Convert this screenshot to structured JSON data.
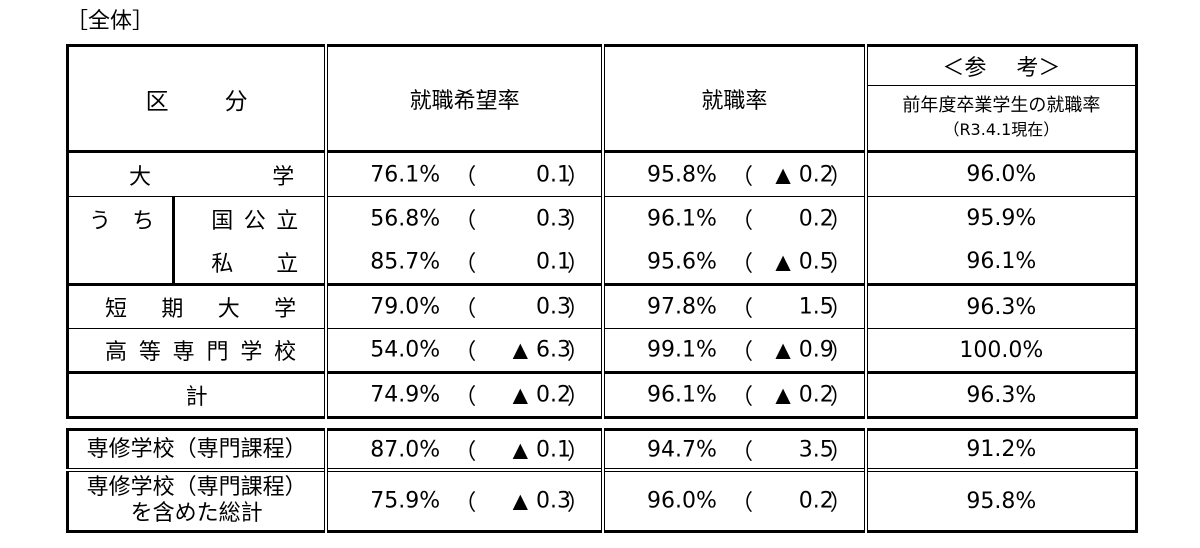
{
  "section_label": "［全体］",
  "header": {
    "category": [
      "区",
      "分"
    ],
    "job_desire_rate": "就職希望率",
    "employment_rate": "就職率",
    "reference_title": [
      "＜参",
      "考＞"
    ],
    "reference_line1": "前年度卒業学生の就職率",
    "reference_line2": "（R3.4.1現在）"
  },
  "rows": {
    "daigaku": {
      "label_chars": [
        "大",
        "学"
      ],
      "desire": "76.1%",
      "desire_tri": "",
      "desire_diff": "0.1",
      "emp": "95.8%",
      "emp_tri": "▲",
      "emp_diff": "0.2",
      "ref": "96.0%"
    },
    "uchi_label": [
      "う",
      "ち"
    ],
    "kokkouritsu": {
      "label_chars": [
        "国",
        "公",
        "立"
      ],
      "desire": "56.8%",
      "desire_tri": "",
      "desire_diff": "0.3",
      "emp": "96.1%",
      "emp_tri": "",
      "emp_diff": "0.2",
      "ref": "95.9%"
    },
    "shiritsu": {
      "label_chars": [
        "私",
        "立"
      ],
      "desire": "85.7%",
      "desire_tri": "",
      "desire_diff": "0.1",
      "emp": "95.6%",
      "emp_tri": "▲",
      "emp_diff": "0.5",
      "ref": "96.1%"
    },
    "tanki": {
      "label_chars": [
        "短",
        "期",
        "大",
        "学"
      ],
      "desire": "79.0%",
      "desire_tri": "",
      "desire_diff": "0.3",
      "emp": "97.8%",
      "emp_tri": "",
      "emp_diff": "1.5",
      "ref": "96.3%"
    },
    "kosen": {
      "label_chars": [
        "高",
        "等",
        "専",
        "門",
        "学",
        "校"
      ],
      "desire": "54.0%",
      "desire_tri": "▲",
      "desire_diff": "6.3",
      "emp": "99.1%",
      "emp_tri": "▲",
      "emp_diff": "0.9",
      "ref": "100.0%"
    },
    "total": {
      "label": "計",
      "desire": "74.9%",
      "desire_tri": "▲",
      "desire_diff": "0.2",
      "emp": "96.1%",
      "emp_tri": "▲",
      "emp_diff": "0.2",
      "ref": "96.3%"
    },
    "senshu": {
      "label": "専修学校（専門課程）",
      "desire": "87.0%",
      "desire_tri": "▲",
      "desire_diff": "0.1",
      "emp": "94.7%",
      "emp_tri": "",
      "emp_diff": "3.5",
      "ref": "91.2%"
    },
    "grand_total": {
      "label_line1": "専修学校（専門課程）",
      "label_line2": "を含めた総計",
      "desire": "75.9%",
      "desire_tri": "▲",
      "desire_diff": "0.3",
      "emp": "96.0%",
      "emp_tri": "",
      "emp_diff": "0.2",
      "ref": "95.8%"
    }
  },
  "paren_open": "（",
  "paren_close": "）"
}
